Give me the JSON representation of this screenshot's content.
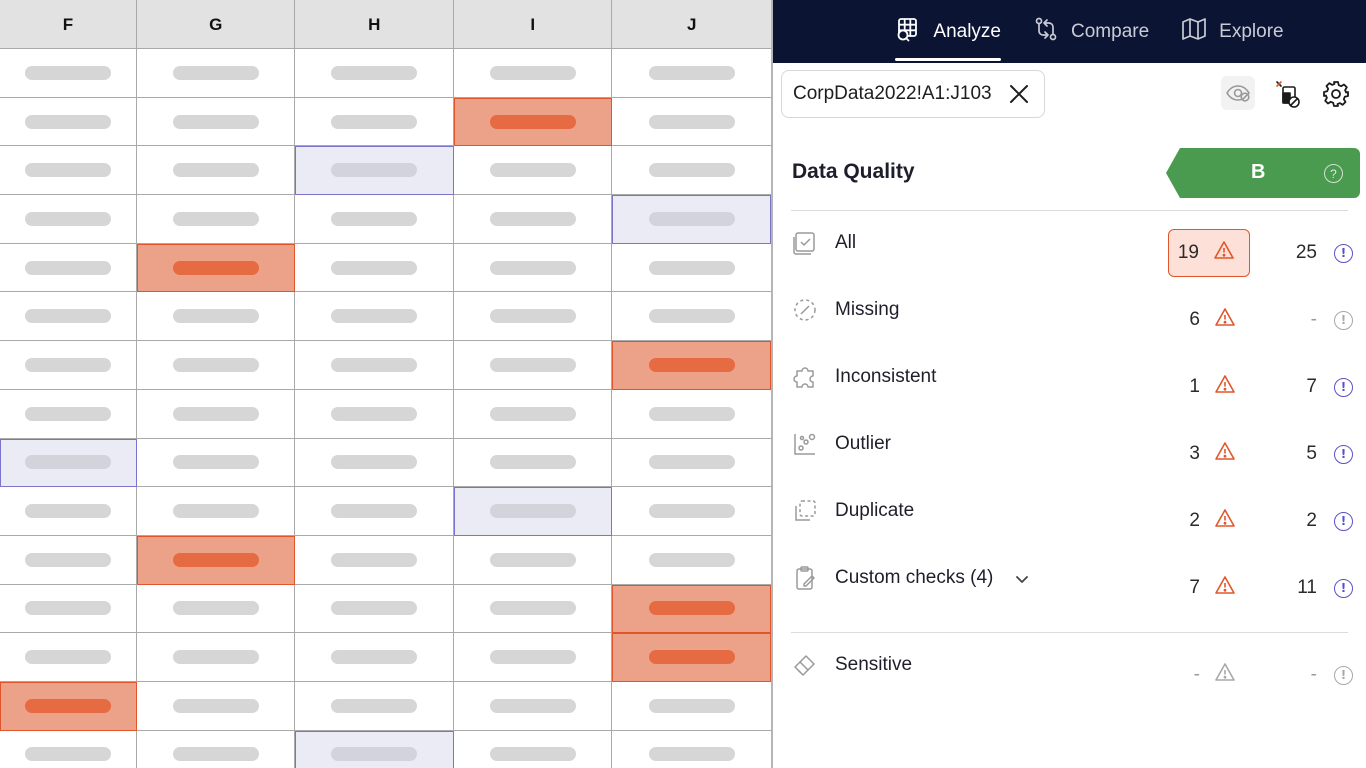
{
  "sheet": {
    "columns": [
      "F",
      "G",
      "H",
      "I",
      "J"
    ],
    "cells": [
      [
        "normal",
        "normal",
        "normal",
        "normal",
        "normal"
      ],
      [
        "normal",
        "normal",
        "normal",
        "error",
        "normal"
      ],
      [
        "normal",
        "normal",
        "selected",
        "normal",
        "normal"
      ],
      [
        "normal",
        "normal",
        "normal",
        "normal",
        "selected"
      ],
      [
        "normal",
        "error",
        "normal",
        "normal",
        "normal"
      ],
      [
        "normal",
        "normal",
        "normal",
        "normal",
        "normal"
      ],
      [
        "normal",
        "normal",
        "normal",
        "normal",
        "error"
      ],
      [
        "normal",
        "normal",
        "normal",
        "normal",
        "normal"
      ],
      [
        "selected",
        "normal",
        "normal",
        "normal",
        "normal"
      ],
      [
        "normal",
        "normal",
        "normal",
        "selected",
        "normal"
      ],
      [
        "normal",
        "error",
        "normal",
        "normal",
        "normal"
      ],
      [
        "normal",
        "normal",
        "normal",
        "normal",
        "error"
      ],
      [
        "normal",
        "normal",
        "normal",
        "normal",
        "error"
      ],
      [
        "error",
        "normal",
        "normal",
        "normal",
        "normal"
      ],
      [
        "normal",
        "normal",
        "selected",
        "normal",
        "normal"
      ]
    ],
    "colors": {
      "error_fill": "#eca288",
      "error_border": "#e0552a",
      "selected_fill": "#ebebf6",
      "selected_border": "#7b74cc"
    }
  },
  "nav": {
    "tabs": [
      {
        "label": "Analyze",
        "icon": "grid-search-icon",
        "active": true
      },
      {
        "label": "Compare",
        "icon": "compare-arrows-icon",
        "active": false
      },
      {
        "label": "Explore",
        "icon": "map-icon",
        "active": false
      }
    ],
    "background": "#0b1433"
  },
  "range": {
    "label": "CorpData2022!A1:J103"
  },
  "toolbar": {
    "icons": [
      "eye-off-icon",
      "sheet-settings-icon",
      "gear-icon"
    ]
  },
  "quality": {
    "title": "Data Quality",
    "grade": "B",
    "grade_color": "#4a9b4f",
    "help": "?"
  },
  "checks": [
    {
      "label": "All",
      "icon": "checkbox-icon",
      "issues": "19",
      "info": "25",
      "highlight": true,
      "muted_issues": false,
      "muted_info": false
    },
    {
      "label": "Missing",
      "icon": "dashed-circle-icon",
      "issues": "6",
      "info": "-",
      "highlight": false,
      "muted_issues": false,
      "muted_info": true
    },
    {
      "label": "Inconsistent",
      "icon": "puzzle-icon",
      "issues": "1",
      "info": "7",
      "highlight": false,
      "muted_issues": false,
      "muted_info": false
    },
    {
      "label": "Outlier",
      "icon": "scatter-icon",
      "issues": "3",
      "info": "5",
      "highlight": false,
      "muted_issues": false,
      "muted_info": false
    },
    {
      "label": "Duplicate",
      "icon": "duplicate-icon",
      "issues": "2",
      "info": "2",
      "highlight": false,
      "muted_issues": false,
      "muted_info": false
    },
    {
      "label": "Custom checks (4)",
      "icon": "clipboard-edit-icon",
      "issues": "7",
      "info": "11",
      "highlight": false,
      "muted_issues": false,
      "muted_info": false,
      "expandable": true
    }
  ],
  "sensitive": {
    "label": "Sensitive",
    "icon": "brush-icon",
    "issues": "-",
    "info": "-"
  },
  "symbols": {
    "info": "!"
  },
  "colors": {
    "warning": "#e2562b",
    "info": "#5951c9",
    "muted": "#a8a8a8"
  }
}
